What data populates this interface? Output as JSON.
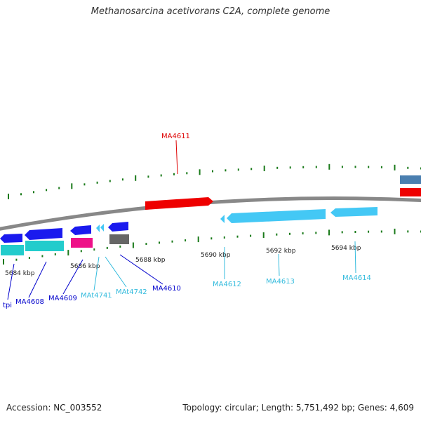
{
  "title": "Methanosarcina acetivorans C2A, complete genome",
  "footer": {
    "accession": "Accession: NC_003552",
    "topology": "Topology: circular; Length: 5,751,492 bp; Genes: 4,609"
  },
  "scale_labels": [
    "5684 kbp",
    "5686 kbp",
    "5688 kbp",
    "5690 kbp",
    "5692 kbp",
    "5694 kbp"
  ],
  "gene_labels": [
    {
      "name": "tpi",
      "color": "#0000cc"
    },
    {
      "name": "MA4608",
      "color": "#0000cc"
    },
    {
      "name": "MA4609",
      "color": "#0000cc"
    },
    {
      "name": "MAt4741",
      "color": "#33bbdd"
    },
    {
      "name": "MAt4742",
      "color": "#33bbdd"
    },
    {
      "name": "MA4610",
      "color": "#0000cc"
    },
    {
      "name": "MA4611",
      "color": "#dd0000"
    },
    {
      "name": "MA4612",
      "color": "#33bbdd"
    },
    {
      "name": "MA4613",
      "color": "#33bbdd"
    },
    {
      "name": "MA4614",
      "color": "#33bbdd"
    }
  ],
  "colors": {
    "tick": "#1a7a1a",
    "backbone": "#888888",
    "gene_blue": "#1a1aee",
    "gene_red": "#ee0000",
    "gene_lightblue": "#44c8f5",
    "gene_cyan": "#22cccc",
    "gene_magenta": "#ee1188",
    "gene_gray": "#666666",
    "gene_steel": "#4a7fb0"
  }
}
